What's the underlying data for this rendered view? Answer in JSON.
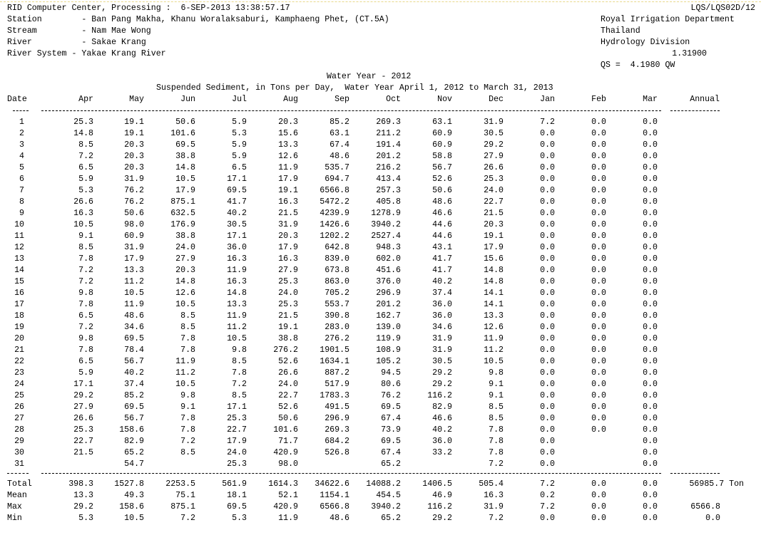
{
  "header": {
    "left": [
      "RID Computer Center, Processing :  6-SEP-2013 13:38:57.17",
      "Station        - Ban Pang Makha, Khanu Woralaksaburi, Kamphaeng Phet, (CT.5A)",
      "Stream         - Nam Mae Wong",
      "River          - Sakae Krang",
      "River System - Yakae Krang River"
    ],
    "report_id": "LQS/LQS02D/12",
    "org": [
      "Royal Irrigation Department",
      "Thailand",
      "Hydrology Division"
    ],
    "coefficient": "1.31900",
    "formula": "QS =  4.1980 QW"
  },
  "titles": {
    "water_year": "Water Year - 2012",
    "subtitle": "Suspended Sediment, in Tons per Day,  Water Year April 1, 2012 to March 31, 2013"
  },
  "columns": [
    "Date",
    "Apr",
    "May",
    "Jun",
    "Jul",
    "Aug",
    "Sep",
    "Oct",
    "Nov",
    "Dec",
    "Jan",
    "Feb",
    "Mar",
    "Annual"
  ],
  "rows": [
    [
      "1",
      "25.3",
      "19.1",
      "50.6",
      "5.9",
      "20.3",
      "85.2",
      "269.3",
      "63.1",
      "31.9",
      "7.2",
      "0.0",
      "0.0"
    ],
    [
      "2",
      "14.8",
      "19.1",
      "101.6",
      "5.3",
      "15.6",
      "63.1",
      "211.2",
      "60.9",
      "30.5",
      "0.0",
      "0.0",
      "0.0"
    ],
    [
      "3",
      "8.5",
      "20.3",
      "69.5",
      "5.9",
      "13.3",
      "67.4",
      "191.4",
      "60.9",
      "29.2",
      "0.0",
      "0.0",
      "0.0"
    ],
    [
      "4",
      "7.2",
      "20.3",
      "38.8",
      "5.9",
      "12.6",
      "48.6",
      "201.2",
      "58.8",
      "27.9",
      "0.0",
      "0.0",
      "0.0"
    ],
    [
      "5",
      "6.5",
      "20.3",
      "14.8",
      "6.5",
      "11.9",
      "535.7",
      "216.2",
      "56.7",
      "26.6",
      "0.0",
      "0.0",
      "0.0"
    ],
    [
      "6",
      "5.9",
      "31.9",
      "10.5",
      "17.1",
      "17.9",
      "694.7",
      "413.4",
      "52.6",
      "25.3",
      "0.0",
      "0.0",
      "0.0"
    ],
    [
      "7",
      "5.3",
      "76.2",
      "17.9",
      "69.5",
      "19.1",
      "6566.8",
      "257.3",
      "50.6",
      "24.0",
      "0.0",
      "0.0",
      "0.0"
    ],
    [
      "8",
      "26.6",
      "76.2",
      "875.1",
      "41.7",
      "16.3",
      "5472.2",
      "405.8",
      "48.6",
      "22.7",
      "0.0",
      "0.0",
      "0.0"
    ],
    [
      "9",
      "16.3",
      "50.6",
      "632.5",
      "40.2",
      "21.5",
      "4239.9",
      "1278.9",
      "46.6",
      "21.5",
      "0.0",
      "0.0",
      "0.0"
    ],
    [
      "10",
      "10.5",
      "98.0",
      "176.9",
      "30.5",
      "31.9",
      "1426.6",
      "3940.2",
      "44.6",
      "20.3",
      "0.0",
      "0.0",
      "0.0"
    ],
    [
      "11",
      "9.1",
      "60.9",
      "38.8",
      "17.1",
      "20.3",
      "1202.2",
      "2527.4",
      "44.6",
      "19.1",
      "0.0",
      "0.0",
      "0.0"
    ],
    [
      "12",
      "8.5",
      "31.9",
      "24.0",
      "36.0",
      "17.9",
      "642.8",
      "948.3",
      "43.1",
      "17.9",
      "0.0",
      "0.0",
      "0.0"
    ],
    [
      "13",
      "7.8",
      "17.9",
      "27.9",
      "16.3",
      "16.3",
      "839.0",
      "602.0",
      "41.7",
      "15.6",
      "0.0",
      "0.0",
      "0.0"
    ],
    [
      "14",
      "7.2",
      "13.3",
      "20.3",
      "11.9",
      "27.9",
      "673.8",
      "451.6",
      "41.7",
      "14.8",
      "0.0",
      "0.0",
      "0.0"
    ],
    [
      "15",
      "7.2",
      "11.2",
      "14.8",
      "16.3",
      "25.3",
      "863.0",
      "376.0",
      "40.2",
      "14.8",
      "0.0",
      "0.0",
      "0.0"
    ],
    [
      "16",
      "9.8",
      "10.5",
      "12.6",
      "14.8",
      "24.0",
      "705.2",
      "296.9",
      "37.4",
      "14.1",
      "0.0",
      "0.0",
      "0.0"
    ],
    [
      "17",
      "7.8",
      "11.9",
      "10.5",
      "13.3",
      "25.3",
      "553.7",
      "201.2",
      "36.0",
      "14.1",
      "0.0",
      "0.0",
      "0.0"
    ],
    [
      "18",
      "6.5",
      "48.6",
      "8.5",
      "11.9",
      "21.5",
      "390.8",
      "162.7",
      "36.0",
      "13.3",
      "0.0",
      "0.0",
      "0.0"
    ],
    [
      "19",
      "7.2",
      "34.6",
      "8.5",
      "11.2",
      "19.1",
      "283.0",
      "139.0",
      "34.6",
      "12.6",
      "0.0",
      "0.0",
      "0.0"
    ],
    [
      "20",
      "9.8",
      "69.5",
      "7.8",
      "10.5",
      "38.8",
      "276.2",
      "119.9",
      "31.9",
      "11.9",
      "0.0",
      "0.0",
      "0.0"
    ],
    [
      "21",
      "7.8",
      "78.4",
      "7.8",
      "9.8",
      "276.2",
      "1901.5",
      "108.9",
      "31.9",
      "11.2",
      "0.0",
      "0.0",
      "0.0"
    ],
    [
      "22",
      "6.5",
      "56.7",
      "11.9",
      "8.5",
      "52.6",
      "1634.1",
      "105.2",
      "30.5",
      "10.5",
      "0.0",
      "0.0",
      "0.0"
    ],
    [
      "23",
      "5.9",
      "40.2",
      "11.2",
      "7.8",
      "26.6",
      "887.2",
      "94.5",
      "29.2",
      "9.8",
      "0.0",
      "0.0",
      "0.0"
    ],
    [
      "24",
      "17.1",
      "37.4",
      "10.5",
      "7.2",
      "24.0",
      "517.9",
      "80.6",
      "29.2",
      "9.1",
      "0.0",
      "0.0",
      "0.0"
    ],
    [
      "25",
      "29.2",
      "85.2",
      "9.8",
      "8.5",
      "22.7",
      "1783.3",
      "76.2",
      "116.2",
      "9.1",
      "0.0",
      "0.0",
      "0.0"
    ],
    [
      "26",
      "27.9",
      "69.5",
      "9.1",
      "17.1",
      "52.6",
      "491.5",
      "69.5",
      "82.9",
      "8.5",
      "0.0",
      "0.0",
      "0.0"
    ],
    [
      "27",
      "26.6",
      "56.7",
      "7.8",
      "25.3",
      "50.6",
      "296.9",
      "67.4",
      "46.6",
      "8.5",
      "0.0",
      "0.0",
      "0.0"
    ],
    [
      "28",
      "25.3",
      "158.6",
      "7.8",
      "22.7",
      "101.6",
      "269.3",
      "73.9",
      "40.2",
      "7.8",
      "0.0",
      "0.0",
      "0.0"
    ],
    [
      "29",
      "22.7",
      "82.9",
      "7.2",
      "17.9",
      "71.7",
      "684.2",
      "69.5",
      "36.0",
      "7.8",
      "0.0",
      "",
      "0.0"
    ],
    [
      "30",
      "21.5",
      "65.2",
      "8.5",
      "24.0",
      "420.9",
      "526.8",
      "67.4",
      "33.2",
      "7.8",
      "0.0",
      "",
      "0.0"
    ],
    [
      "31",
      "",
      "54.7",
      "",
      "25.3",
      "98.0",
      "",
      "65.2",
      "",
      "7.2",
      "0.0",
      "",
      "0.0"
    ]
  ],
  "summary": [
    {
      "label": "Total",
      "values": [
        "398.3",
        "1527.8",
        "2253.5",
        "561.9",
        "1614.3",
        "34622.6",
        "14088.2",
        "1406.5",
        "505.4",
        "7.2",
        "0.0",
        "0.0"
      ],
      "annual": "56985.7 Ton"
    },
    {
      "label": "Mean",
      "values": [
        "13.3",
        "49.3",
        "75.1",
        "18.1",
        "52.1",
        "1154.1",
        "454.5",
        "46.9",
        "16.3",
        "0.2",
        "0.0",
        "0.0"
      ],
      "annual": ""
    },
    {
      "label": "Max",
      "values": [
        "29.2",
        "158.6",
        "875.1",
        "69.5",
        "420.9",
        "6566.8",
        "3940.2",
        "116.2",
        "31.9",
        "7.2",
        "0.0",
        "0.0"
      ],
      "annual": "6566.8"
    },
    {
      "label": "Min",
      "values": [
        "5.3",
        "10.5",
        "7.2",
        "5.3",
        "11.9",
        "48.6",
        "65.2",
        "29.2",
        "7.2",
        "0.0",
        "0.0",
        "0.0"
      ],
      "annual": "0.0"
    }
  ]
}
